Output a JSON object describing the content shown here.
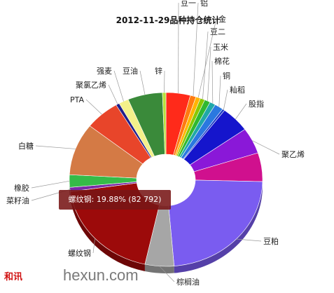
{
  "chart_data": {
    "type": "pie",
    "title": "2012-11-29品种持仓统计",
    "slices": [
      {
        "label": "豆一",
        "share": 4.2,
        "color": "#ff2a1a"
      },
      {
        "label": "铝",
        "share": 1.0,
        "color": "#ff7a10"
      },
      {
        "label": "金",
        "share": 0.8,
        "color": "#ffb400"
      },
      {
        "label": "豆二",
        "share": 0.8,
        "color": "#8ac800"
      },
      {
        "label": "玉米",
        "share": 1.0,
        "color": "#30b830"
      },
      {
        "label": "棉花",
        "share": 1.0,
        "color": "#20a8a8"
      },
      {
        "label": "铜",
        "share": 1.5,
        "color": "#2a78e0"
      },
      {
        "label": "籼稻",
        "share": 0.4,
        "color": "#1c3cc8"
      },
      {
        "label": "股指",
        "share": 5.0,
        "color": "#1515cc"
      },
      {
        "label": "聚乙烯",
        "share": 5.0,
        "color": "#8a18d8"
      },
      {
        "label": "聚乙烯",
        "share": 5.5,
        "color": "#d0108e"
      },
      {
        "label": "豆粕",
        "share": 24.0,
        "color": "#7a5cf0"
      },
      {
        "label": "棕榈油",
        "share": 5.0,
        "color": "#a6a6a6"
      },
      {
        "label": "螺纹钢",
        "share": 19.88,
        "color": "#9c0a0a"
      },
      {
        "label": "菜籽油",
        "share": 0.8,
        "color": "#7b2aa6"
      },
      {
        "label": "橡胶",
        "share": 2.4,
        "color": "#36bb48"
      },
      {
        "label": "白糖",
        "share": 10.0,
        "color": "#d47a45"
      },
      {
        "label": "PTA",
        "share": 6.0,
        "color": "#e8452a"
      },
      {
        "label": "聚氯乙烯",
        "share": 0.6,
        "color": "#1e1e8a"
      },
      {
        "label": "强麦",
        "share": 1.7,
        "color": "#f4f08a"
      },
      {
        "label": "豆油",
        "share": 6.0,
        "color": "#3a8a3a"
      },
      {
        "label": "锌",
        "share": 0.6,
        "color": "#b8e03a"
      }
    ],
    "highlight": {
      "label": "螺纹钢",
      "percent": "19.88%",
      "value": "82 792"
    }
  },
  "tooltip": {
    "text": "螺纹钢: 19.88% (82 792)"
  },
  "watermark": {
    "logo": "和讯",
    "site": "hexun.com"
  }
}
